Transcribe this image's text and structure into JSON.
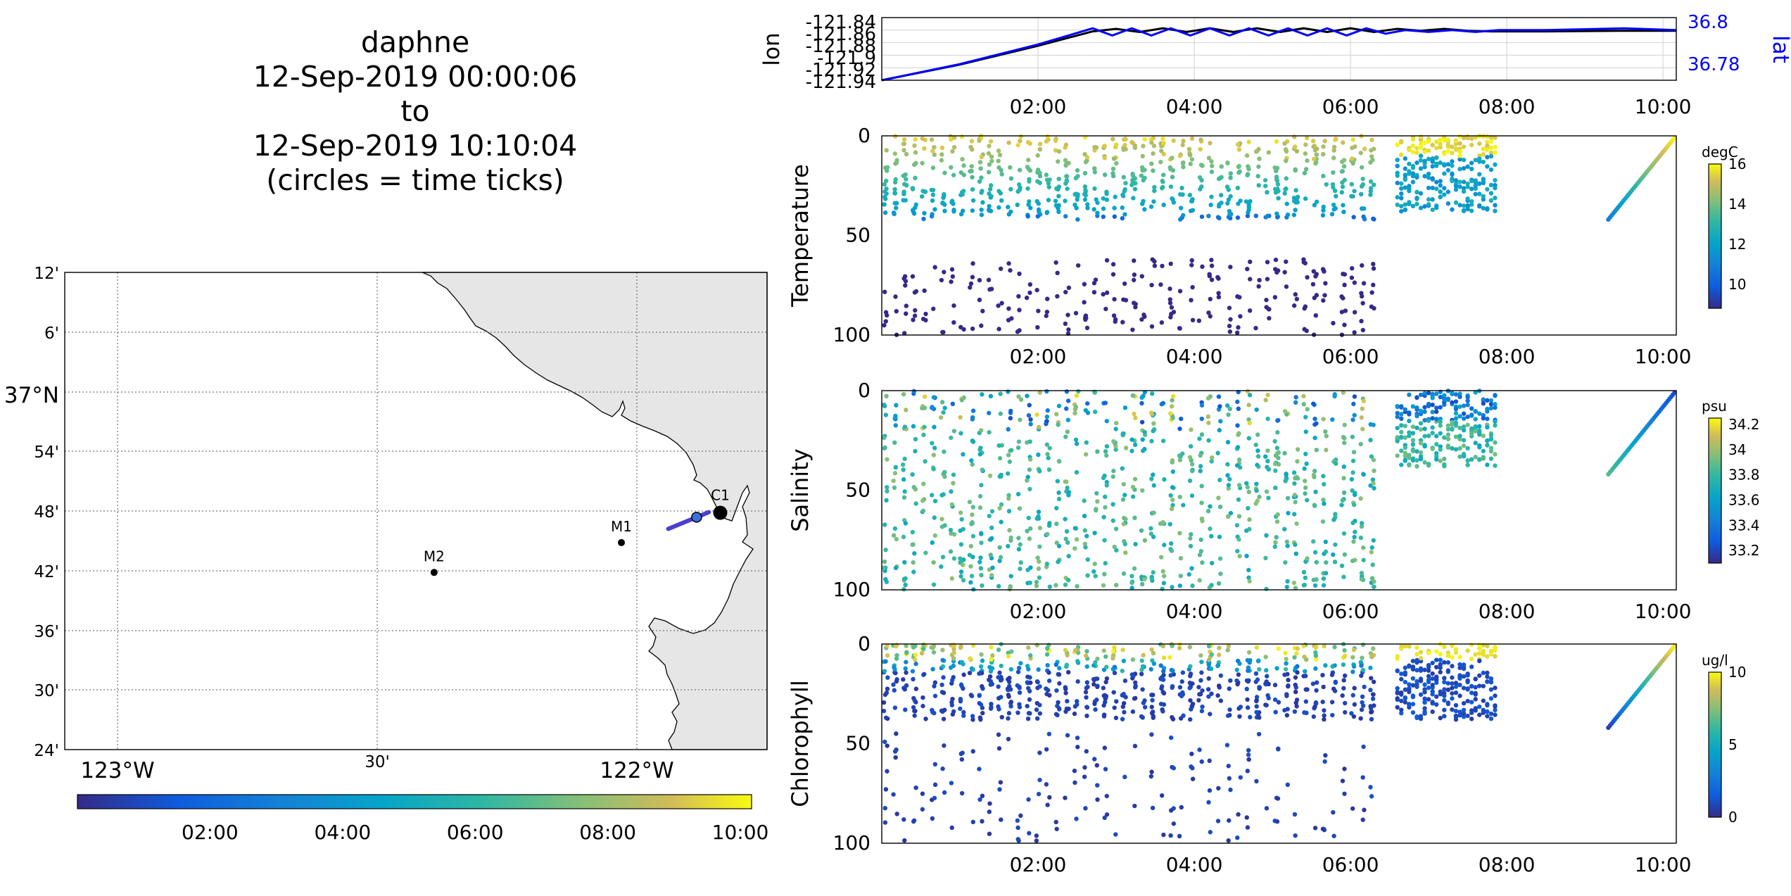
{
  "title": {
    "line1": "daphne",
    "line2": "12-Sep-2019 00:00:06",
    "line3": "to",
    "line4": "12-Sep-2019 10:10:04",
    "line5": "(circles = time ticks)"
  },
  "colors": {
    "lon_line": "#000000",
    "lat_line": "#0000ff",
    "land": "#e6e6e6",
    "track": "#4b3fd0"
  },
  "time_ticks": [
    "02:00",
    "04:00",
    "06:00",
    "08:00",
    "10:00"
  ],
  "chart_data": [
    {
      "type": "line",
      "panel": "position",
      "xlabel": "",
      "ylabel": "lon",
      "ylabel_right": "lat",
      "x_unit": "hours",
      "xlim": [
        0,
        10.17
      ],
      "ylim": [
        -121.94,
        -121.84
      ],
      "ylim_right": [
        36.77,
        36.805
      ],
      "yticks": [
        "-121.84",
        "-121.86",
        "-121.88",
        "-121.9",
        "-121.92",
        "-121.94"
      ],
      "yticks_right": [
        "36.8",
        "36.78"
      ],
      "grid": true,
      "series": [
        {
          "name": "lon",
          "axis": "left",
          "x": [
            0,
            1.0,
            2.0,
            2.7,
            3.0,
            3.3,
            3.6,
            3.9,
            4.2,
            4.5,
            4.8,
            5.1,
            5.4,
            5.7,
            6.0,
            6.3,
            6.6,
            6.9,
            7.2,
            7.5,
            7.8,
            8.5,
            9.5,
            10.17
          ],
          "y": [
            -121.94,
            -121.915,
            -121.885,
            -121.862,
            -121.858,
            -121.863,
            -121.857,
            -121.863,
            -121.857,
            -121.863,
            -121.857,
            -121.863,
            -121.857,
            -121.863,
            -121.857,
            -121.863,
            -121.858,
            -121.861,
            -121.858,
            -121.861,
            -121.862,
            -121.862,
            -121.861,
            -121.861
          ]
        },
        {
          "name": "lat",
          "axis": "right",
          "x": [
            0,
            1.0,
            2.0,
            2.7,
            2.95,
            3.2,
            3.45,
            3.7,
            3.95,
            4.2,
            4.45,
            4.7,
            4.95,
            5.2,
            5.45,
            5.7,
            5.95,
            6.2,
            6.45,
            6.7,
            7.0,
            7.3,
            7.6,
            7.9,
            8.5,
            9.5,
            10.17
          ],
          "y": [
            36.77,
            36.779,
            36.79,
            36.799,
            36.795,
            36.799,
            36.795,
            36.799,
            36.795,
            36.799,
            36.795,
            36.799,
            36.795,
            36.799,
            36.795,
            36.799,
            36.795,
            36.799,
            36.796,
            36.798,
            36.797,
            36.798,
            36.797,
            36.798,
            36.798,
            36.799,
            36.798
          ]
        }
      ]
    },
    {
      "type": "scatter",
      "panel": "profile",
      "ylabel": "Temperature",
      "colorbar_label": "degC",
      "colorbar_ticks": [
        "16",
        "14",
        "12",
        "10"
      ],
      "clim": [
        8.8,
        16
      ],
      "xlim": [
        0,
        10.17
      ],
      "ylim": [
        0,
        100
      ],
      "yticks": [
        "0",
        "50",
        "100"
      ],
      "reversed_y": true
    },
    {
      "type": "scatter",
      "panel": "profile",
      "ylabel": "Salinity",
      "colorbar_label": "psu",
      "colorbar_ticks": [
        "34.2",
        "34",
        "33.8",
        "33.6",
        "33.4",
        "33.2"
      ],
      "clim": [
        33.1,
        34.25
      ],
      "xlim": [
        0,
        10.17
      ],
      "ylim": [
        0,
        100
      ],
      "yticks": [
        "0",
        "50",
        "100"
      ],
      "reversed_y": true
    },
    {
      "type": "scatter",
      "panel": "profile",
      "ylabel": "Chlorophyll",
      "colorbar_label": "ug/l",
      "colorbar_ticks": [
        "10",
        "5",
        "0"
      ],
      "clim": [
        0,
        10
      ],
      "xlim": [
        0,
        10.17
      ],
      "ylim": [
        0,
        100
      ],
      "yticks": [
        "0",
        "50",
        "100"
      ],
      "reversed_y": true
    },
    {
      "type": "scatter",
      "panel": "map",
      "lat_ticks": [
        "12'",
        "6'",
        "37°N",
        "54'",
        "48'",
        "42'",
        "36'",
        "30'",
        "24'"
      ],
      "lon_ticks": [
        "123°W",
        "30'",
        "122°W"
      ],
      "xlim": [
        -123.1,
        -121.75
      ],
      "ylim": [
        36.4,
        37.2
      ],
      "stations": [
        {
          "label": "M2",
          "lon": -122.39,
          "lat": 36.697
        },
        {
          "label": "M1",
          "lon": -122.03,
          "lat": 36.747
        },
        {
          "label": "C1",
          "lon": -121.84,
          "lat": 36.797
        }
      ],
      "track": {
        "lon": [
          -121.94,
          -121.862
        ],
        "lat": [
          36.77,
          36.798
        ]
      },
      "colorbar_ticks": [
        "02:00",
        "04:00",
        "06:00",
        "08:00",
        "10:00"
      ]
    }
  ]
}
